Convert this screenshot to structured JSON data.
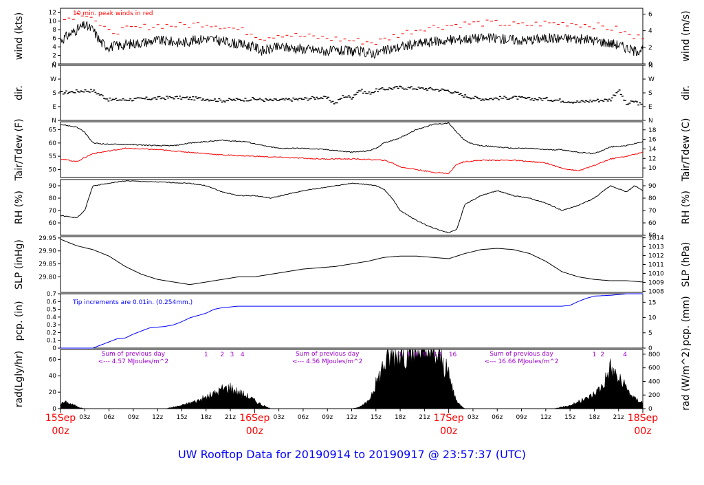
{
  "chart_data": {
    "footer": "UW Rooftop Data for 20190914  to  20190917 @ 23:57:37  (UTC)",
    "x_ticks": [
      "03z",
      "06z",
      "09z",
      "12z",
      "15z",
      "18z",
      "21z",
      "03z",
      "06z",
      "09z",
      "12z",
      "15z",
      "18z",
      "21z",
      "03z",
      "06z",
      "09z",
      "12z",
      "15z",
      "18z",
      "21z"
    ],
    "x_ticks_hours": [
      3,
      6,
      9,
      12,
      15,
      18,
      21,
      27,
      30,
      33,
      36,
      39,
      42,
      45,
      51,
      54,
      57,
      60,
      63,
      66,
      69
    ],
    "date_labels": [
      {
        "hour": 0,
        "line1": "15Sep",
        "line2": "00z"
      },
      {
        "hour": 24,
        "line1": "16Sep",
        "line2": "00z"
      },
      {
        "hour": 48,
        "line1": "17Sep",
        "line2": "00z"
      },
      {
        "hour": 72,
        "line1": "18Sep",
        "line2": "00z"
      }
    ],
    "x_range_hours": [
      0,
      72
    ],
    "panels": [
      {
        "id": "wind",
        "type": "line",
        "ylabel_left": "wind (kts)",
        "ylabel_right": "wind (m/s)",
        "ylim": [
          0,
          13
        ],
        "left_ticks": [
          "0",
          "2",
          "4",
          "6",
          "8",
          "10",
          "12"
        ],
        "right_ticks": [
          "0",
          "2",
          "4",
          "6"
        ],
        "annotation": "10 min. peak winds in red",
        "series": [
          {
            "name": "wind speed",
            "color": "#000000",
            "x": [
              0,
              2,
              3,
              4,
              5,
              6,
              8,
              10,
              12,
              15,
              18,
              21,
              24,
              25,
              27,
              30,
              33,
              36,
              39,
              42,
              45,
              48,
              51,
              54,
              57,
              60,
              63,
              66,
              69,
              71,
              72
            ],
            "y": [
              5.5,
              8,
              9,
              8,
              5,
              4,
              4.5,
              5,
              5.5,
              5,
              6,
              5,
              4,
              3,
              4,
              3.5,
              3,
              3,
              2.5,
              4,
              5,
              5.5,
              6,
              6,
              5.5,
              6,
              6,
              5.5,
              4.5,
              3,
              3.5
            ]
          },
          {
            "name": "peak wind",
            "color": "#ff0000",
            "x": [
              0,
              2,
              3,
              4,
              5,
              6,
              8,
              10,
              12,
              15,
              18,
              21,
              24,
              25,
              27,
              30,
              33,
              36,
              39,
              42,
              45,
              48,
              51,
              54,
              57,
              60,
              63,
              66,
              69,
              71,
              72
            ],
            "y": [
              10,
              11.5,
              12,
              11,
              8.5,
              7.5,
              8,
              8.5,
              9,
              9,
              9.5,
              8.5,
              7,
              6,
              7,
              6.5,
              6,
              5.5,
              5,
              7,
              8.5,
              9,
              9.5,
              9.5,
              9,
              9.5,
              9.5,
              9,
              8,
              6,
              6.5
            ]
          }
        ]
      },
      {
        "id": "dir",
        "type": "scatter",
        "ylabel_left": "dir.",
        "ylabel_right": "dir.",
        "ylim": [
          0,
          360
        ],
        "left_ticks": [
          "N",
          "E",
          "S",
          "W",
          "N"
        ],
        "right_ticks": [
          "N",
          "E",
          "S",
          "W",
          "N"
        ],
        "series": [
          {
            "name": "wind direction",
            "color": "#000000",
            "x": [
              0,
              1,
              2,
              3,
              4,
              5,
              6,
              8,
              10,
              12,
              14,
              16,
              18,
              20,
              22,
              24,
              26,
              28,
              30,
              32,
              33,
              34,
              35,
              36,
              37,
              38,
              39,
              40,
              42,
              44,
              46,
              48,
              50,
              52,
              54,
              56,
              58,
              60,
              62,
              64,
              66,
              68,
              69,
              70,
              71,
              72
            ],
            "y": [
              180,
              185,
              190,
              195,
              195,
              165,
              135,
              135,
              140,
              145,
              150,
              145,
              140,
              130,
              135,
              140,
              130,
              135,
              140,
              150,
              145,
              110,
              160,
              150,
              200,
              175,
              195,
              205,
              215,
              210,
              205,
              195,
              160,
              140,
              145,
              150,
              140,
              140,
              130,
              120,
              130,
              135,
              200,
              105,
              125,
              95
            ]
          }
        ]
      },
      {
        "id": "temp",
        "type": "line",
        "ylabel_left": "Tair/Tdew (F)",
        "ylabel_right": "Tair/Tdew (C)",
        "ylim": [
          47,
          68
        ],
        "left_ticks": [
          "50",
          "55",
          "60",
          "65"
        ],
        "right_ticks": [
          "10",
          "12",
          "14",
          "16",
          "18"
        ],
        "series": [
          {
            "name": "Tair",
            "color": "#000000",
            "x": [
              0,
              2,
              3,
              4,
              6,
              8,
              12,
              14,
              16,
              20,
              23,
              25,
              27,
              30,
              33,
              36,
              38,
              39,
              40,
              41,
              42,
              44,
              46,
              48,
              49,
              50,
              51,
              52,
              54,
              56,
              58,
              60,
              62,
              64,
              66,
              68,
              70,
              72
            ],
            "y": [
              67,
              66,
              64,
              60,
              59.5,
              59.5,
              59,
              59,
              60,
              61,
              60.5,
              59,
              58,
              58,
              57.5,
              56.5,
              57,
              58,
              60,
              61,
              62,
              65,
              67,
              67.5,
              64,
              61,
              59.5,
              59,
              58.5,
              58,
              58,
              57.5,
              57.5,
              56.5,
              56,
              58.5,
              59,
              60.5
            ]
          },
          {
            "name": "Tdew",
            "color": "#ff0000",
            "x": [
              0,
              2,
              4,
              6,
              8,
              12,
              16,
              20,
              24,
              28,
              32,
              36,
              38,
              40,
              41,
              42,
              44,
              46,
              48,
              49,
              50,
              52,
              56,
              60,
              62,
              64,
              66,
              68,
              70,
              72
            ],
            "y": [
              54,
              53,
              56,
              57,
              58,
              57.5,
              56.5,
              55.5,
              55,
              54.5,
              54,
              54,
              53.8,
              53.5,
              52.5,
              51,
              50,
              49,
              48.5,
              52,
              53,
              53.5,
              53.5,
              52.5,
              50.5,
              49.5,
              51.5,
              54,
              55,
              56.5
            ]
          }
        ]
      },
      {
        "id": "rh",
        "type": "line",
        "ylabel_left": "RH (%)",
        "ylabel_right": "RH (%)",
        "ylim": [
          50,
          95
        ],
        "left_ticks": [
          "60",
          "70",
          "80",
          "90"
        ],
        "right_ticks": [
          "50",
          "60",
          "70",
          "80",
          "90"
        ],
        "series": [
          {
            "name": "RH",
            "color": "#000000",
            "x": [
              0,
              2,
              3,
              4,
              6,
              8,
              12,
              16,
              18,
              20,
              22,
              24,
              26,
              28,
              30,
              32,
              34,
              36,
              38,
              39,
              40,
              41,
              42,
              44,
              46,
              48,
              49,
              50,
              52,
              54,
              56,
              58,
              60,
              62,
              64,
              66,
              68,
              70,
              71,
              72
            ],
            "y": [
              66,
              64,
              70,
              90,
              92,
              94,
              93,
              92,
              90,
              85,
              82,
              82,
              80,
              83,
              86,
              88,
              90,
              92,
              91,
              90,
              87,
              80,
              70,
              62,
              56,
              52,
              55,
              75,
              82,
              86,
              82,
              80,
              76,
              70,
              74,
              80,
              90,
              85,
              90,
              86
            ]
          }
        ]
      },
      {
        "id": "slp",
        "type": "line",
        "ylabel_left": "SLP (inHg)",
        "ylabel_right": "SLP (hPa)",
        "ylim": [
          29.74,
          29.955
        ],
        "left_ticks": [
          "29.80",
          "29.85",
          "29.90",
          "29.95"
        ],
        "right_ticks": [
          "1008",
          "1009",
          "1010",
          "1011",
          "1012",
          "1013",
          "1014"
        ],
        "series": [
          {
            "name": "SLP",
            "color": "#000000",
            "x": [
              0,
              2,
              4,
              6,
              8,
              10,
              12,
              14,
              16,
              18,
              20,
              22,
              24,
              26,
              28,
              30,
              32,
              34,
              36,
              38,
              40,
              42,
              44,
              46,
              48,
              50,
              52,
              54,
              56,
              58,
              60,
              62,
              64,
              66,
              68,
              70,
              72
            ],
            "y": [
              29.945,
              29.92,
              29.905,
              29.88,
              29.84,
              29.81,
              29.79,
              29.78,
              29.77,
              29.78,
              29.79,
              29.8,
              29.8,
              29.81,
              29.82,
              29.83,
              29.835,
              29.84,
              29.85,
              29.86,
              29.875,
              29.88,
              29.88,
              29.875,
              29.87,
              29.89,
              29.905,
              29.91,
              29.905,
              29.89,
              29.86,
              29.82,
              29.8,
              29.79,
              29.785,
              29.785,
              29.78
            ]
          }
        ]
      },
      {
        "id": "pcp",
        "type": "line",
        "ylabel_left": "pcp. (in)",
        "ylabel_right": "pcp. (mm)",
        "ylim": [
          0,
          0.7
        ],
        "left_ticks": [
          "0",
          "0.1",
          "0.2",
          "0.3",
          "0.4",
          "0.5",
          "0.6",
          "0.7"
        ],
        "right_ticks": [
          "0",
          "5",
          "10",
          "15"
        ],
        "annotation": "Tip increments are 0.01in. (0.254mm.)",
        "series": [
          {
            "name": "cumulative precipitation",
            "color": "#0000ff",
            "x": [
              0,
              4,
              5,
              7,
              8,
              9,
              10,
              11,
              12,
              13,
              14,
              15,
              16,
              18,
              19,
              20,
              21,
              22,
              23,
              24,
              25,
              62,
              63,
              64,
              65,
              66,
              68,
              69,
              70,
              72
            ],
            "y": [
              0,
              0,
              0.04,
              0.12,
              0.13,
              0.18,
              0.22,
              0.26,
              0.27,
              0.28,
              0.3,
              0.34,
              0.39,
              0.45,
              0.5,
              0.52,
              0.53,
              0.54,
              0.54,
              0.54,
              0.54,
              0.54,
              0.55,
              0.6,
              0.64,
              0.67,
              0.68,
              0.69,
              0.7,
              0.7
            ]
          }
        ]
      },
      {
        "id": "rad",
        "type": "area",
        "ylabel_left": "rad(Lgly/hr)",
        "ylabel_right": "rad (W/m^2)",
        "ylim": [
          0,
          72
        ],
        "left_ticks": [
          "0",
          "20",
          "40",
          "60"
        ],
        "right_ticks": [
          "0",
          "200",
          "400",
          "600",
          "800"
        ],
        "daily_sums": [
          {
            "hour": 9,
            "line1": "Sum of previous day",
            "line2": "<--- 4.57 MJoules/m^2"
          },
          {
            "hour": 33,
            "line1": "Sum of previous day",
            "line2": "<--- 4.56 MJoules/m^2"
          },
          {
            "hour": 57,
            "line1": "Sum of previous day",
            "line2": "<--- 16.66 MJoules/m^2"
          }
        ],
        "hour_marks": [
          {
            "hour": 18,
            "label": "1"
          },
          {
            "hour": 20,
            "label": "2"
          },
          {
            "hour": 21.2,
            "label": "3"
          },
          {
            "hour": 22.5,
            "label": "4"
          },
          {
            "hour": 42,
            "label": "1"
          },
          {
            "hour": 43,
            "label": "3"
          },
          {
            "hour": 44,
            "label": "6"
          },
          {
            "hour": 45,
            "label": "9"
          },
          {
            "hour": 46.6,
            "label": "13"
          },
          {
            "hour": 48.5,
            "label": "16"
          },
          {
            "hour": 66,
            "label": "1"
          },
          {
            "hour": 67,
            "label": "2"
          },
          {
            "hour": 69.8,
            "label": "4"
          }
        ],
        "series": [
          {
            "name": "solar radiation",
            "color": "#000000",
            "x": [
              0,
              0.5,
              1,
              2,
              2.5,
              3,
              13,
              14,
              15,
              16,
              17,
              18,
              19,
              20,
              21,
              22,
              23,
              24,
              25,
              26,
              36,
              37,
              38,
              39,
              40,
              41,
              42,
              43,
              44,
              45,
              46,
              47,
              48,
              49,
              50,
              61,
              62,
              63,
              64,
              65,
              66,
              67,
              68,
              69,
              70,
              71,
              72
            ],
            "y": [
              6,
              8,
              7,
              3,
              1,
              0,
              0,
              2,
              4,
              7,
              10,
              14,
              18,
              24,
              26,
              20,
              16,
              10,
              4,
              0,
              0,
              2,
              8,
              30,
              55,
              66,
              70,
              68,
              72,
              70,
              66,
              62,
              40,
              8,
              0,
              0,
              2,
              4,
              8,
              12,
              18,
              28,
              50,
              36,
              24,
              12,
              8
            ]
          }
        ]
      }
    ]
  }
}
